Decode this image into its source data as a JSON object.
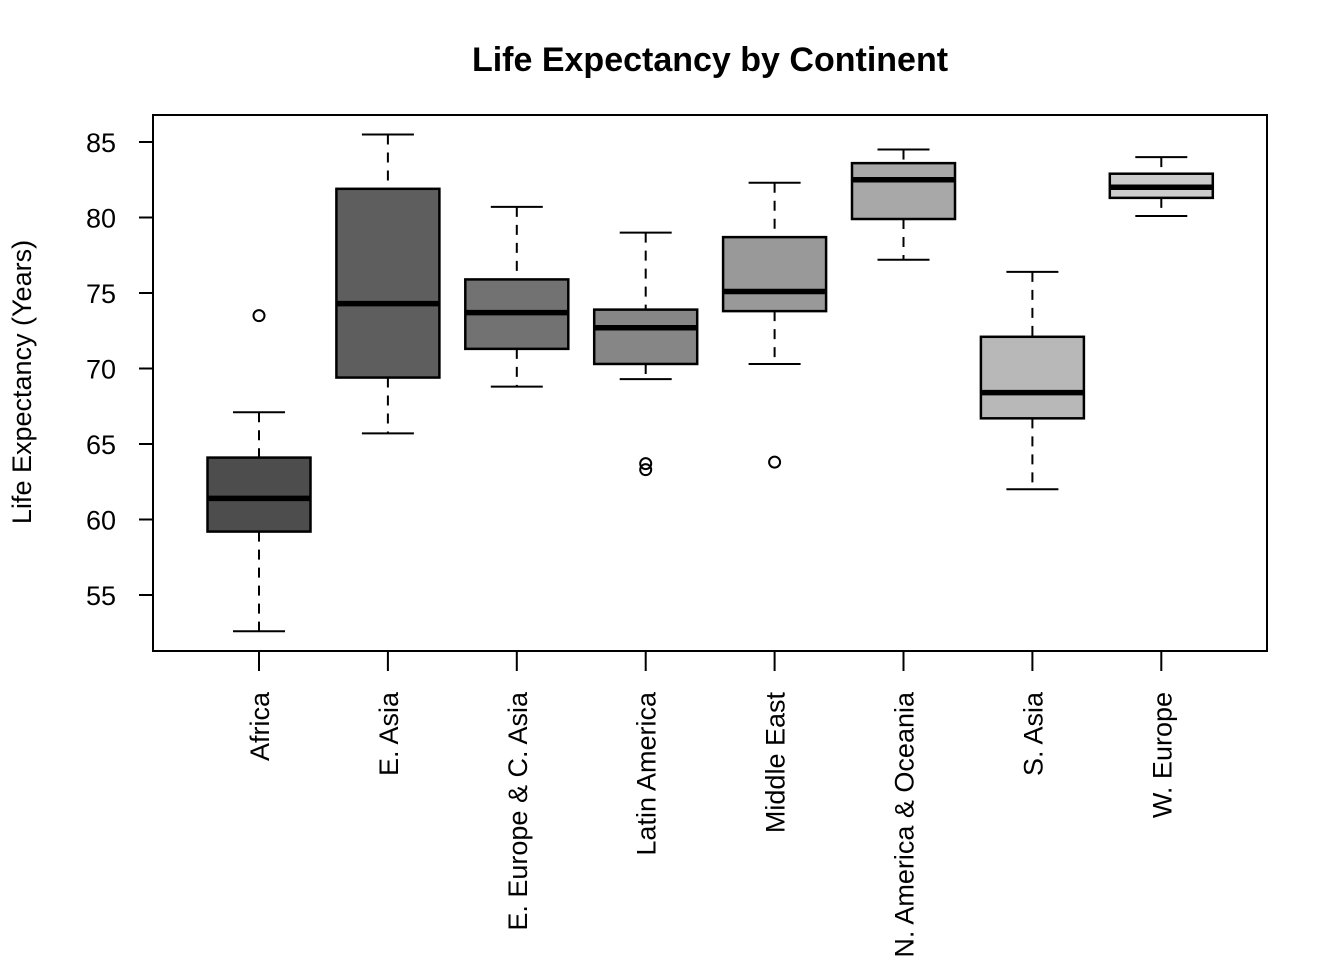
{
  "chart_data": {
    "type": "boxplot",
    "title": "Life Expectancy by Continent",
    "xlabel": "",
    "ylabel": "Life Expectancy (Years)",
    "ylim": [
      51.5,
      87
    ],
    "yticks": [
      55,
      60,
      65,
      70,
      75,
      80,
      85
    ],
    "grid": false,
    "legend": "none",
    "categories": [
      "Africa",
      "E. Asia",
      "E. Europe & C. Asia",
      "Latin America",
      "Middle East",
      "N. America & Oceania",
      "S. Asia",
      "W. Europe"
    ],
    "series": [
      {
        "name": "Africa",
        "whisker_low": 52.6,
        "q1": 59.2,
        "median": 61.4,
        "q3": 64.1,
        "whisker_high": 67.1,
        "outliers": [
          73.5
        ],
        "fill": "#4d4d4d"
      },
      {
        "name": "E. Asia",
        "whisker_low": 65.7,
        "q1": 69.4,
        "median": 74.3,
        "q3": 81.9,
        "whisker_high": 85.5,
        "outliers": [],
        "fill": "#5e5e5e"
      },
      {
        "name": "E. Europe & C. Asia",
        "whisker_low": 68.8,
        "q1": 71.3,
        "median": 73.7,
        "q3": 75.9,
        "whisker_high": 80.7,
        "outliers": [],
        "fill": "#727272"
      },
      {
        "name": "Latin America",
        "whisker_low": 69.3,
        "q1": 70.3,
        "median": 72.7,
        "q3": 73.9,
        "whisker_high": 79.0,
        "outliers": [
          63.7,
          63.3
        ],
        "fill": "#868686"
      },
      {
        "name": "Middle East",
        "whisker_low": 70.3,
        "q1": 73.8,
        "median": 75.1,
        "q3": 78.7,
        "whisker_high": 82.3,
        "outliers": [
          63.8
        ],
        "fill": "#999999"
      },
      {
        "name": "N. America & Oceania",
        "whisker_low": 77.2,
        "q1": 79.9,
        "median": 82.5,
        "q3": 83.6,
        "whisker_high": 84.5,
        "outliers": [],
        "fill": "#a8a8a8"
      },
      {
        "name": "S. Asia",
        "whisker_low": 62.0,
        "q1": 66.7,
        "median": 68.4,
        "q3": 72.1,
        "whisker_high": 76.4,
        "outliers": [],
        "fill": "#b8b8b8"
      },
      {
        "name": "W. Europe",
        "whisker_low": 80.1,
        "q1": 81.3,
        "median": 82.0,
        "q3": 82.9,
        "whisker_high": 84.0,
        "outliers": [],
        "fill": "#cccccc"
      }
    ]
  }
}
